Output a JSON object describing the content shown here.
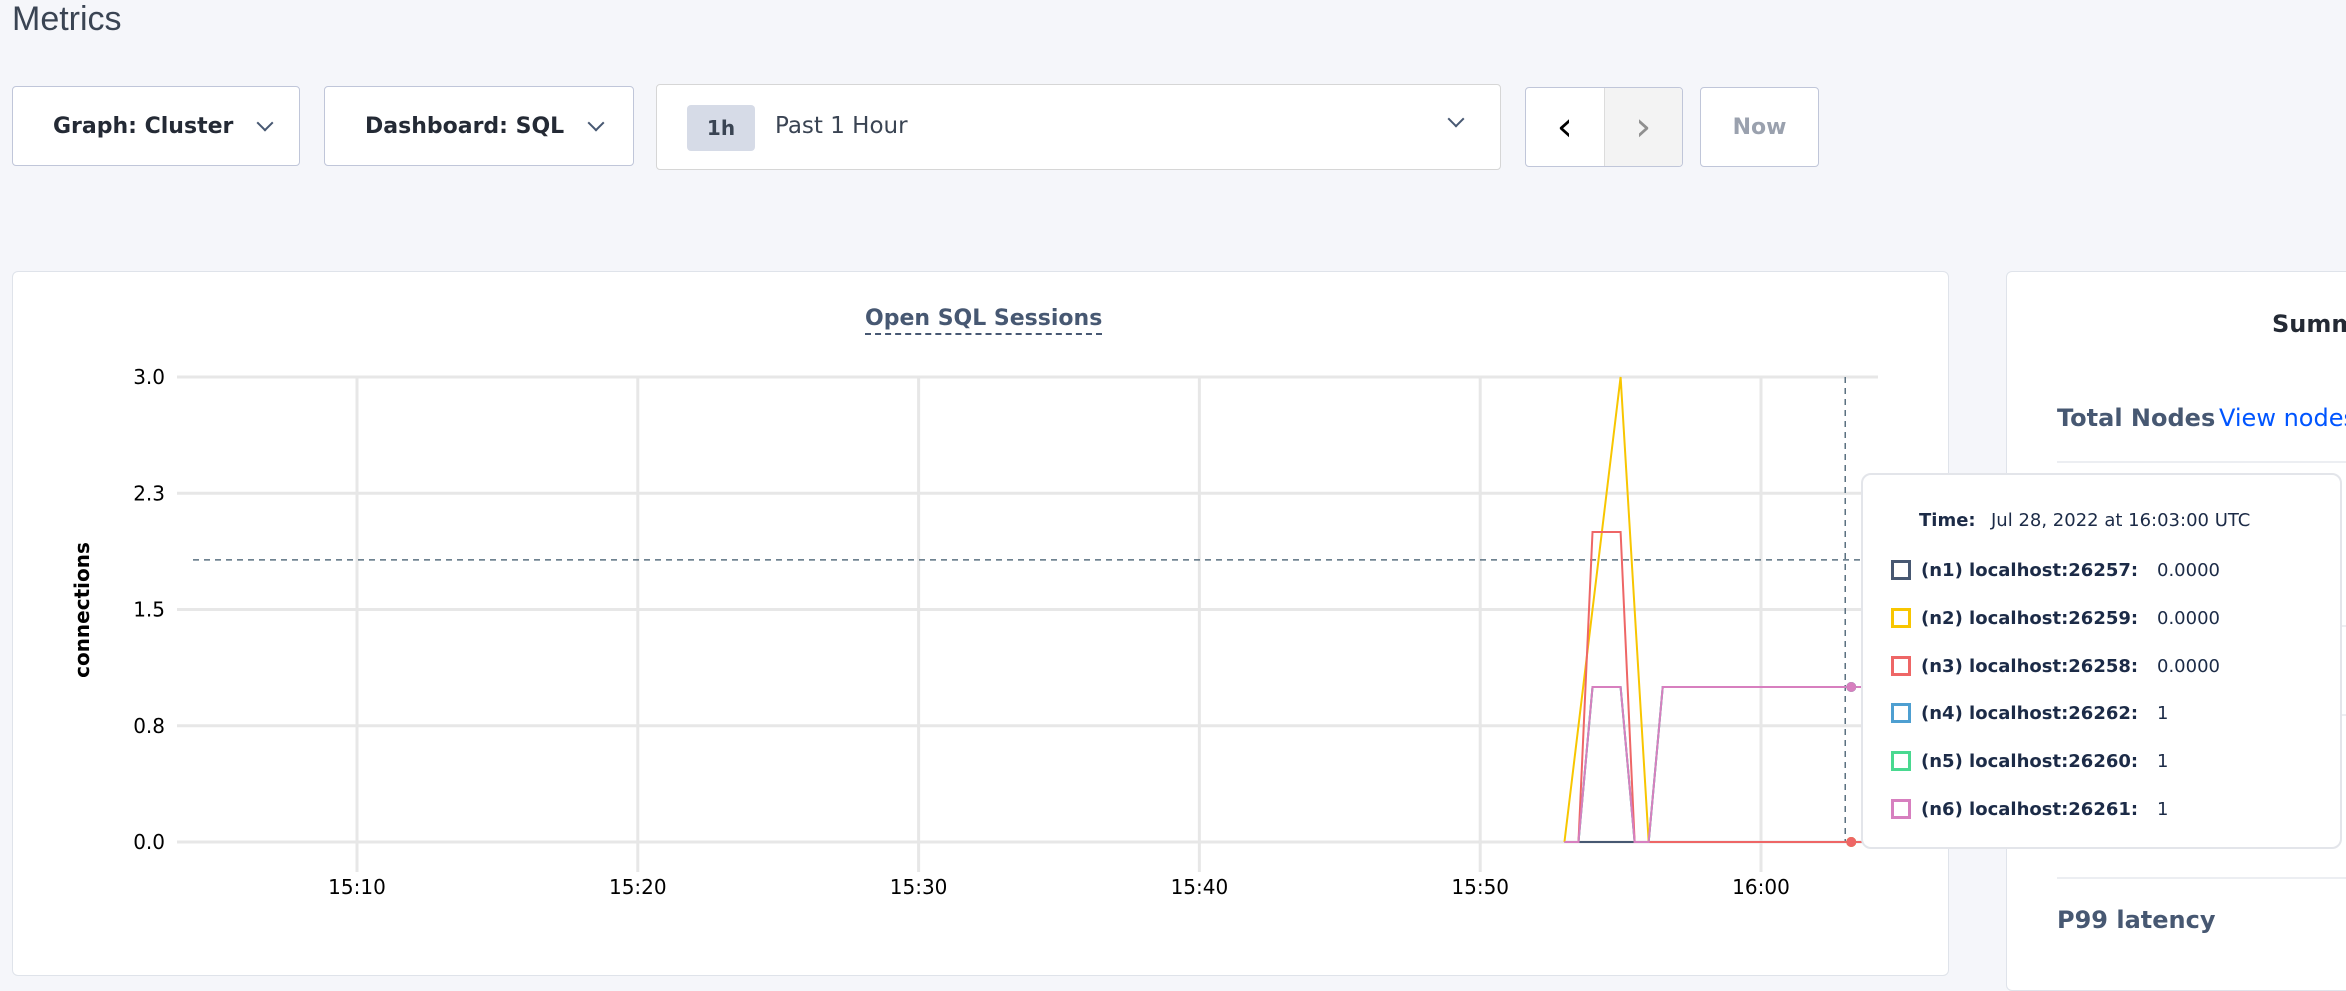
{
  "page": {
    "title": "Metrics"
  },
  "toolbar": {
    "graph_label": "Graph: Cluster",
    "dashboard_label": "Dashboard: SQL",
    "time_range_badge": "1h",
    "time_range_label": "Past 1 Hour",
    "prev_icon": "chevron-left-icon",
    "next_icon": "chevron-right-icon",
    "now_label": "Now"
  },
  "chart_data": {
    "type": "line",
    "title": "Open SQL Sessions",
    "ylabel": "connections",
    "xlabel": "",
    "ylim": [
      0,
      3
    ],
    "xlim": [
      "15:03:30",
      "16:04:10"
    ],
    "y_ticks": [
      0,
      0.75,
      1.5,
      2.25,
      3
    ],
    "y_tick_labels": [
      "0.0",
      "0.8",
      "1.5",
      "2.3",
      "3.0"
    ],
    "x_ticks": [
      "15:10",
      "15:20",
      "15:30",
      "15:40",
      "15:50",
      "16:00"
    ],
    "grid": true,
    "hover": {
      "time": "16:03:00",
      "y": 1.82
    },
    "series": [
      {
        "name": "(n1) localhost:26257",
        "color": "#475872",
        "x": [
          "15:53:00",
          "15:53:30",
          "15:54:00",
          "15:55:00",
          "15:55:30",
          "15:56:00",
          "15:56:30",
          "16:03:00",
          "16:03:40"
        ],
        "y": [
          0,
          0,
          0,
          0,
          0,
          0,
          0,
          0,
          0
        ]
      },
      {
        "name": "(n4) localhost:26262",
        "color": "#4e9fd1",
        "x": [
          "15:53:00",
          "15:53:30",
          "15:54:00",
          "15:55:00",
          "15:55:30",
          "15:56:00",
          "15:56:30",
          "16:03:00",
          "16:03:40"
        ],
        "y": [
          0,
          0,
          1,
          1,
          0,
          0,
          1,
          1,
          1
        ]
      },
      {
        "name": "(n5) localhost:26260",
        "color": "#49d990",
        "x": [
          "15:53:00",
          "15:53:30",
          "15:54:00",
          "15:55:00",
          "15:55:30",
          "15:56:00",
          "15:56:30",
          "16:03:00",
          "16:03:40"
        ],
        "y": [
          0,
          0,
          1,
          1,
          0,
          0,
          1,
          1,
          1
        ]
      },
      {
        "name": "(n2) localhost:26259",
        "color": "#f8c600",
        "x": [
          "15:53:00",
          "15:55:00",
          "15:56:00",
          "16:03:00",
          "16:03:40"
        ],
        "y": [
          0,
          3,
          0,
          0,
          0
        ]
      },
      {
        "name": "(n3) localhost:26258",
        "color": "#ee6666",
        "x": [
          "15:53:00",
          "15:53:30",
          "15:54:00",
          "15:55:00",
          "15:55:30",
          "16:03:00",
          "16:03:40"
        ],
        "y": [
          0,
          0,
          2,
          2,
          0,
          0,
          0
        ]
      },
      {
        "name": "(n6) localhost:26261",
        "color": "#d77fbf",
        "x": [
          "15:53:00",
          "15:53:30",
          "15:54:00",
          "15:55:00",
          "15:55:30",
          "15:56:00",
          "15:56:30",
          "16:03:00",
          "16:03:40"
        ],
        "y": [
          0,
          0,
          1,
          1,
          0,
          0,
          1,
          1,
          1
        ]
      }
    ]
  },
  "tooltip": {
    "time_label": "Time:",
    "time_value": "Jul 28, 2022 at 16:03:00 UTC",
    "rows": [
      {
        "name": "(n1) localhost:26257:",
        "value": "0.0000",
        "color": "#475872"
      },
      {
        "name": "(n2) localhost:26259:",
        "value": "0.0000",
        "color": "#f8c600"
      },
      {
        "name": "(n3) localhost:26258:",
        "value": "0.0000",
        "color": "#ee6666"
      },
      {
        "name": "(n4) localhost:26262:",
        "value": "1",
        "color": "#4e9fd1"
      },
      {
        "name": "(n5) localhost:26260:",
        "value": "1",
        "color": "#49d990"
      },
      {
        "name": "(n6) localhost:26261:",
        "value": "1",
        "color": "#d77fbf"
      }
    ]
  },
  "summary": {
    "title": "Summ",
    "total_nodes_label": "Total Nodes",
    "view_nodes_link": "View nodes",
    "p99_label": "P99 latency"
  }
}
